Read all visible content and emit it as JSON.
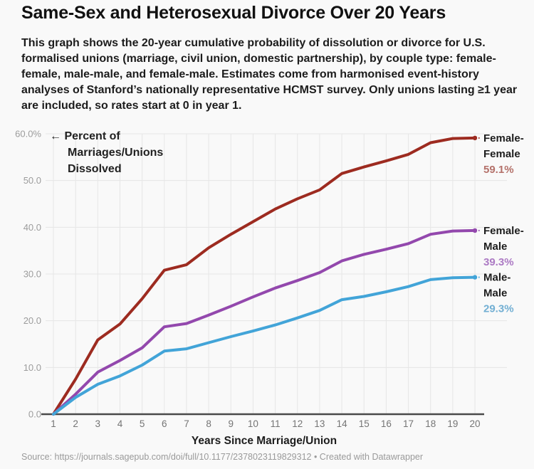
{
  "title": "Same-Sex and Heterosexual Divorce Over 20 Years",
  "description": "This graph shows the 20-year cumulative probability of dissolution or divorce for U.S. formalised unions (marriage, civil union, domestic partnership), by couple type: female-female, male-male, and female-male. Estimates come from harmonised event-history analyses of Stanford’s nationally representative HCMST survey. Only unions lasting ≥1 year are included, so rates start at 0 in year 1.",
  "source_line": "Source: https://journals.sagepub.com/doi/full/10.1177/2378023119829312 • Created with Datawrapper",
  "chart_data": {
    "type": "line",
    "x": [
      1,
      2,
      3,
      4,
      5,
      6,
      7,
      8,
      9,
      10,
      11,
      12,
      13,
      14,
      15,
      16,
      17,
      18,
      19,
      20
    ],
    "xlabel": "Years Since Marriage/Union",
    "y_axis_annotation_lines": [
      "← Percent of",
      "Marriages/Unions",
      "Dissolved"
    ],
    "ylim": [
      0,
      60
    ],
    "ytick_values": [
      0,
      10,
      20,
      30,
      40,
      50,
      60
    ],
    "ytick_labels": [
      "0.0",
      "10.0",
      "20.0",
      "30.0",
      "40.0",
      "50.0",
      "60.0%"
    ],
    "grid": true,
    "legend_position": "right-end-labels",
    "series": [
      {
        "name": "Female-Female",
        "name_lines": [
          "Female-",
          "Female"
        ],
        "end_label": "59.1%",
        "color": "#9d2b20",
        "label_color": "#b4716a",
        "values": [
          0,
          7.5,
          15.9,
          19.3,
          24.7,
          30.8,
          32.0,
          35.6,
          38.5,
          41.2,
          43.9,
          46.1,
          48.0,
          51.5,
          52.9,
          54.2,
          55.6,
          58.1,
          59.0,
          59.1
        ]
      },
      {
        "name": "Female-Male",
        "name_lines": [
          "Female-",
          "Male"
        ],
        "end_label": "39.3%",
        "color": "#9348ad",
        "label_color": "#ac7ac4",
        "values": [
          0,
          4.3,
          9.0,
          11.5,
          14.2,
          18.7,
          19.4,
          21.2,
          23.1,
          25.1,
          27.0,
          28.6,
          30.3,
          32.8,
          34.2,
          35.3,
          36.5,
          38.5,
          39.2,
          39.3
        ]
      },
      {
        "name": "Male-Male",
        "name_lines": [
          "Male-",
          "Male"
        ],
        "end_label": "29.3%",
        "color": "#42a4d8",
        "label_color": "#72afd3",
        "values": [
          0,
          3.6,
          6.4,
          8.2,
          10.5,
          13.5,
          14.0,
          15.3,
          16.6,
          17.8,
          19.1,
          20.6,
          22.2,
          24.5,
          25.2,
          26.2,
          27.3,
          28.8,
          29.2,
          29.3
        ]
      }
    ],
    "style": {
      "grid_color": "#e6e6e6",
      "axis_color": "#4a4a4a",
      "ytick_color": "#9c9c9c",
      "xtick_color": "#757575",
      "text_color": "#1d1d1d"
    }
  }
}
